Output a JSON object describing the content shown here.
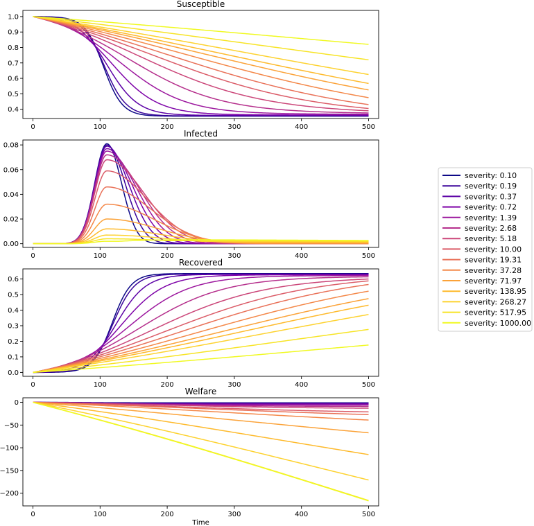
{
  "chart_data": {
    "type": "line",
    "xlabel": "Time",
    "xlim": [
      -15,
      515
    ],
    "x_ticks": [
      0,
      100,
      200,
      300,
      400,
      500
    ],
    "legend_position": "right",
    "legend": [
      {
        "label": "severity: 0.10",
        "color": "#0d0887"
      },
      {
        "label": "severity: 0.19",
        "color": "#3a049a"
      },
      {
        "label": "severity: 0.37",
        "color": "#5c01a6"
      },
      {
        "label": "severity: 0.72",
        "color": "#7e03a8"
      },
      {
        "label": "severity: 1.39",
        "color": "#9c179e"
      },
      {
        "label": "severity: 2.68",
        "color": "#b52f8c"
      },
      {
        "label": "severity: 5.18",
        "color": "#cb4679"
      },
      {
        "label": "severity: 10.00",
        "color": "#db5c68"
      },
      {
        "label": "severity: 19.31",
        "color": "#e97158"
      },
      {
        "label": "severity: 37.28",
        "color": "#f48849"
      },
      {
        "label": "severity: 71.97",
        "color": "#fba238"
      },
      {
        "label": "severity: 138.95",
        "color": "#feba2c"
      },
      {
        "label": "severity: 268.27",
        "color": "#fdd22f"
      },
      {
        "label": "severity: 517.95",
        "color": "#f7e425"
      },
      {
        "label": "severity: 1000.00",
        "color": "#f0f921"
      }
    ],
    "panels": [
      {
        "title": "Susceptible",
        "ylim": [
          0.34,
          1.04
        ],
        "y_ticks": [
          0.4,
          0.5,
          0.6,
          0.7,
          0.8,
          0.9,
          1.0
        ],
        "y_tick_labels": [
          "0.4",
          "0.5",
          "0.6",
          "0.7",
          "0.8",
          "0.9",
          "1.0"
        ],
        "final_values": [
          0.355,
          0.357,
          0.36,
          0.363,
          0.368,
          0.376,
          0.39,
          0.405,
          0.43,
          0.475,
          0.525,
          0.567,
          0.625,
          0.72,
          0.82
        ]
      },
      {
        "title": "Infected",
        "ylim": [
          -0.003,
          0.084
        ],
        "y_ticks": [
          0.0,
          0.02,
          0.04,
          0.06,
          0.08
        ],
        "y_tick_labels": [
          "0.00",
          "0.02",
          "0.04",
          "0.06",
          "0.08"
        ],
        "peak_values": [
          0.081,
          0.08,
          0.079,
          0.077,
          0.075,
          0.072,
          0.068,
          0.059,
          0.046,
          0.032,
          0.02,
          0.012,
          0.007,
          0.004,
          0.002
        ]
      },
      {
        "title": "Recovered",
        "ylim": [
          -0.025,
          0.665
        ],
        "y_ticks": [
          0.0,
          0.1,
          0.2,
          0.3,
          0.4,
          0.5,
          0.6
        ],
        "y_tick_labels": [
          "0.0",
          "0.1",
          "0.2",
          "0.3",
          "0.4",
          "0.5",
          "0.6"
        ],
        "final_values": [
          0.635,
          0.632,
          0.63,
          0.627,
          0.622,
          0.614,
          0.6,
          0.588,
          0.565,
          0.522,
          0.474,
          0.432,
          0.372,
          0.276,
          0.176
        ]
      },
      {
        "title": "Welfare",
        "ylim": [
          -228,
          10
        ],
        "y_ticks": [
          0,
          -50,
          -100,
          -150,
          -200
        ],
        "y_tick_labels": [
          "0",
          "−50",
          "−100",
          "−150",
          "−200"
        ],
        "final_values": [
          -1,
          -2,
          -3,
          -4,
          -6,
          -9,
          -13,
          -21,
          -27,
          -39,
          -67,
          -115,
          -171,
          -216,
          -217
        ]
      }
    ]
  }
}
